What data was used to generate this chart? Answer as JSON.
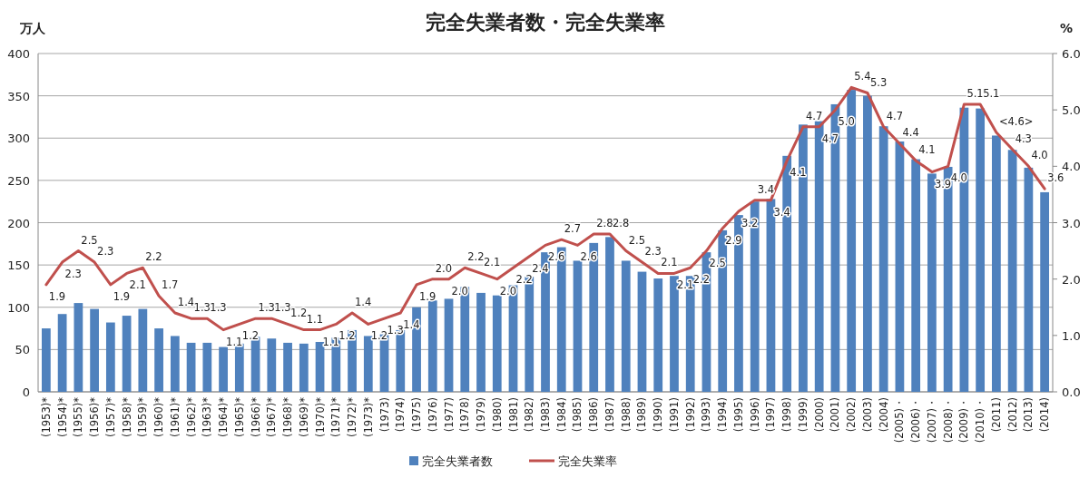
{
  "chart_data": {
    "type": "bar",
    "title": "完全失業者数・完全失業率",
    "ylabel": "万人",
    "y2label": "%",
    "categories": [
      "(1953)*",
      "(1954)*",
      "(1955)*",
      "(1956)*",
      "(1957)*",
      "(1958)*",
      "(1959)*",
      "(1960)*",
      "(1961)*",
      "(1962)*",
      "(1963)*",
      "(1964)*",
      "(1965)*",
      "(1966)*",
      "(1967)*",
      "(1968)*",
      "(1969)*",
      "(1970)*",
      "(1971)*",
      "(1972)*",
      "(1973)*",
      "(1973)",
      "(1974)",
      "(1975)",
      "(1976)",
      "(1977)",
      "(1978)",
      "(1979)",
      "(1980)",
      "(1981)",
      "(1982)",
      "(1983)",
      "(1984)",
      "(1985)",
      "(1986)",
      "(1987)",
      "(1988)",
      "(1989)",
      "(1990)",
      "(1991)",
      "(1992)",
      "(1993)",
      "(1994)",
      "(1995)",
      "(1996)",
      "(1997)",
      "(1998)",
      "(1999)",
      "(2000)",
      "(2001)",
      "(2002)",
      "(2003)",
      "(2004)",
      "(2005)・",
      "(2006)・",
      "(2007)・",
      "(2008)・",
      "(2009)・",
      "(2010)・",
      "(2011)",
      "(2012)",
      "(2013)",
      "(2014)"
    ],
    "series": [
      {
        "name": "完全失業者数",
        "color": "#4f81bd",
        "values": [
          75,
          92,
          105,
          98,
          82,
          90,
          98,
          75,
          66,
          58,
          58,
          53,
          57,
          65,
          63,
          58,
          57,
          59,
          64,
          73,
          66,
          68,
          73,
          100,
          108,
          110,
          124,
          117,
          114,
          126,
          136,
          165,
          171,
          155,
          176,
          183,
          155,
          142,
          134,
          137,
          137,
          165,
          191,
          209,
          225,
          228,
          279,
          316,
          320,
          340,
          357,
          350,
          314,
          296,
          275,
          258,
          266,
          336,
          335,
          303,
          286,
          265,
          236
        ]
      },
      {
        "name": "完全失業率",
        "type": "line",
        "axis": "y2",
        "color": "#c0504d",
        "values": [
          1.9,
          2.3,
          2.5,
          2.3,
          1.9,
          2.1,
          2.2,
          1.7,
          1.4,
          1.3,
          1.3,
          1.1,
          1.2,
          1.3,
          1.3,
          1.2,
          1.1,
          1.1,
          1.2,
          1.4,
          1.2,
          1.3,
          1.4,
          1.9,
          2.0,
          2.0,
          2.2,
          2.1,
          2.0,
          2.2,
          2.4,
          2.6,
          2.7,
          2.6,
          2.8,
          2.8,
          2.5,
          2.3,
          2.1,
          2.1,
          2.2,
          2.5,
          2.9,
          3.2,
          3.4,
          3.4,
          4.1,
          4.7,
          4.7,
          5.0,
          5.4,
          5.3,
          4.7,
          4.4,
          4.1,
          3.9,
          4.0,
          5.1,
          5.1,
          4.6,
          4.3,
          4.0,
          3.6
        ],
        "value_labels": [
          "1.9",
          "2.3",
          "2.5",
          "2.3",
          "1.9",
          "2.1",
          "2.2",
          "1.7",
          "1.4",
          "1.3",
          "1.3",
          "1.1",
          "1.2",
          "1.3",
          "1.3",
          "1.2",
          "1.1",
          "1.1",
          "1.2",
          "1.4",
          "1.2",
          "1.3",
          "1.4",
          "1.9",
          "2.0",
          "2.0",
          "2.2",
          "2.1",
          "2.0",
          "2.2",
          "2.4",
          "2.6",
          "2.7",
          "2.6",
          "2.8",
          "2.8",
          "2.5",
          "2.3",
          "2.1",
          "2.1",
          "2.2",
          "2.5",
          "2.9",
          "3.2",
          "3.4",
          "3.4",
          "4.1",
          "4.7",
          "4.7",
          "5.0",
          "5.4",
          "5.3",
          "4.7",
          "4.4",
          "4.1",
          "3.9",
          "4.0",
          "5.1",
          "5.1",
          "<4.6>",
          "4.3",
          "4.0",
          "3.6"
        ]
      }
    ],
    "ylim": [
      0,
      400
    ],
    "yticks": [
      0,
      50,
      100,
      150,
      200,
      250,
      300,
      350,
      400
    ],
    "y2lim": [
      0,
      6
    ],
    "y2ticks": [
      {
        "value": 0,
        "label": "0.0"
      },
      {
        "value": 1,
        "label": "1.0"
      },
      {
        "value": 2,
        "label": "2.0"
      },
      {
        "value": 3,
        "label": "3.0"
      },
      {
        "value": 4,
        "label": "4.0"
      },
      {
        "value": 5,
        "label": "5.0"
      },
      {
        "value": 6,
        "label": "6.0"
      }
    ],
    "grid": "y",
    "legend": "bottom"
  }
}
